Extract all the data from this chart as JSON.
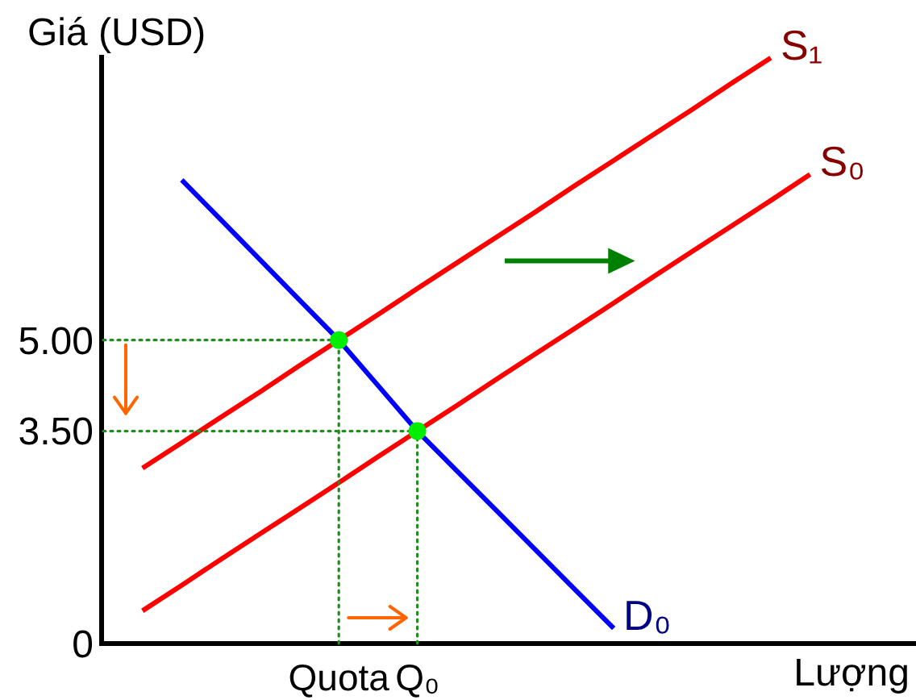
{
  "chart_data": {
    "type": "line",
    "xlabel": "Lượng",
    "ylabel": "Giá (USD)",
    "categories": [
      null,
      null,
      null,
      null,
      null,
      null,
      "Quota",
      null,
      "Q₀",
      null,
      null,
      null,
      null,
      null,
      null,
      null,
      null,
      null,
      null,
      null,
      null
    ],
    "ylim": [
      0,
      9.7
    ],
    "yticks": [
      0,
      {
        "value": 3.5,
        "label": "3.50"
      },
      {
        "value": 5,
        "label": "5.00"
      }
    ],
    "series": [
      {
        "name": "S₁",
        "color": "#ff0000",
        "values": [
          null,
          2.89,
          3.31,
          3.73,
          4.15,
          4.58,
          5,
          5.42,
          5.85,
          6.27,
          6.69,
          7.11,
          7.54,
          7.96,
          8.38,
          8.8,
          9.23,
          9.65,
          null,
          null,
          null
        ]
      },
      {
        "name": "S₀",
        "color": "#ff0000",
        "values": [
          null,
          0.54,
          0.96,
          1.39,
          1.81,
          2.23,
          2.65,
          3.08,
          3.5,
          3.92,
          4.35,
          4.77,
          5.19,
          5.61,
          6.04,
          6.46,
          6.88,
          7.3,
          7.73,
          null,
          null
        ]
      },
      {
        "name": "D₀",
        "color": "#0000ff",
        "values": [
          null,
          null,
          7.64,
          6.98,
          6.32,
          5.66,
          5,
          4.25,
          3.5,
          2.85,
          2.2,
          1.55,
          0.9,
          0.25,
          null,
          null,
          null,
          null,
          null,
          null,
          null
        ]
      },
      {
        "color": "#228b22",
        "line_style": "dotted",
        "values": [
          5,
          5,
          5,
          5,
          5,
          5,
          5,
          null,
          null,
          null,
          null,
          null,
          null,
          null,
          null,
          null,
          null,
          null,
          null,
          null,
          null
        ]
      },
      {
        "color": "#228b22",
        "line_style": "dotted",
        "values": [
          3.5,
          3.5,
          3.5,
          3.5,
          3.5,
          3.5,
          3.5,
          3.5,
          3.5,
          null,
          null,
          null,
          null,
          null,
          null,
          null,
          null,
          null,
          null,
          null,
          null
        ]
      },
      {
        "color": "#228b22",
        "line_style": "dotted",
        "x": [
          "Quota",
          "Quota"
        ],
        "values": [
          0,
          5
        ]
      },
      {
        "color": "#228b22",
        "line_style": "dotted",
        "x": [
          "Q₀",
          "Q₀"
        ],
        "values": [
          0,
          3.5
        ]
      },
      {
        "type": "scatter",
        "color": "#00ee00",
        "marker": "circle",
        "x": [
          "Quota",
          "Q₀"
        ],
        "values": [
          5,
          3.5
        ]
      }
    ]
  }
}
